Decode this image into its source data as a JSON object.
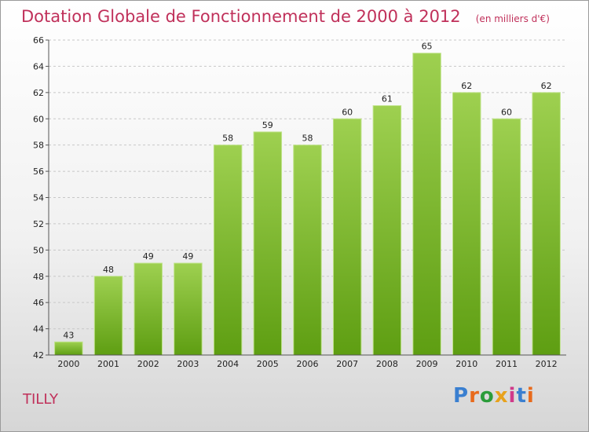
{
  "header": {
    "title": "Dotation Globale de Fonctionnement de 2000 à 2012",
    "unit": "(en milliers d'€)"
  },
  "footer": {
    "place": "TILLY",
    "logo": "Proxiti",
    "logo_colors": [
      "#3a7fd0",
      "#e86a1c",
      "#2b9c3a",
      "#e8a21c",
      "#d03a8a",
      "#3a7fd0",
      "#e86a1c"
    ]
  },
  "chart_data": {
    "type": "bar",
    "title": "Dotation Globale de Fonctionnement de 2000 à 2012",
    "xlabel": "",
    "ylabel": "",
    "categories": [
      "2000",
      "2001",
      "2002",
      "2003",
      "2004",
      "2005",
      "2006",
      "2007",
      "2008",
      "2009",
      "2010",
      "2011",
      "2012"
    ],
    "values": [
      43,
      48,
      49,
      49,
      58,
      59,
      58,
      60,
      61,
      65,
      62,
      60,
      62
    ],
    "ylim": [
      42,
      66
    ],
    "yticks": [
      42,
      44,
      46,
      48,
      50,
      52,
      54,
      56,
      58,
      60,
      62,
      64,
      66
    ],
    "grid": true,
    "legend": "none",
    "bar_color_top": "#9ed050",
    "bar_color_bottom": "#5e9e12",
    "bar_edge": "#bfe38a"
  }
}
